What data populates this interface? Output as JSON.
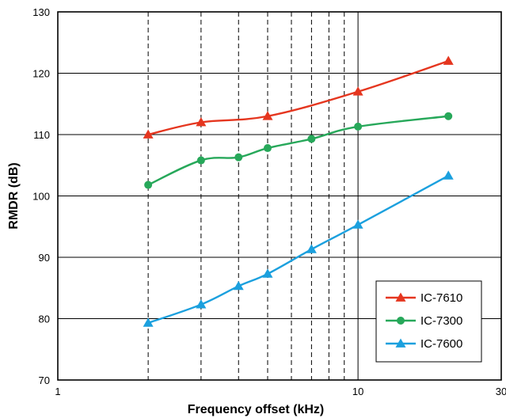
{
  "chart_data": {
    "type": "line",
    "xlabel": "Frequency offset (kHz)",
    "ylabel": "RMDR (dB)",
    "xscale": "log",
    "xlim": [
      1,
      30
    ],
    "ylim": [
      70,
      130
    ],
    "x_ticks": [
      1,
      10,
      30
    ],
    "x_tick_labels": [
      "1",
      "10",
      "30"
    ],
    "y_ticks": [
      70,
      80,
      90,
      100,
      110,
      120,
      130
    ],
    "y_tick_labels": [
      "70",
      "80",
      "90",
      "100",
      "110",
      "120",
      "130"
    ],
    "grid": "horizontal solid at y ticks; vertical dashed at 2,3,4,5,6,7,8,9 kHz; vertical solid at 10 kHz",
    "legend_position": "lower-right",
    "series": [
      {
        "name": "IC-7610",
        "color": "#e5361f",
        "marker": "triangle",
        "x": [
          2,
          3,
          5,
          10,
          20
        ],
        "y": [
          110,
          112,
          113,
          117,
          122
        ]
      },
      {
        "name": "IC-7300",
        "color": "#27a85a",
        "marker": "circle",
        "x": [
          2,
          3,
          4,
          5,
          7,
          10,
          20
        ],
        "y": [
          101.8,
          105.8,
          106.3,
          107.8,
          109.3,
          111.3,
          113
        ]
      },
      {
        "name": "IC-7600",
        "color": "#1ba0de",
        "marker": "triangle",
        "x": [
          2,
          3,
          4,
          5,
          7,
          10,
          20
        ],
        "y": [
          79.3,
          82.3,
          85.3,
          87.3,
          91.3,
          95.3,
          103.3
        ]
      }
    ]
  }
}
